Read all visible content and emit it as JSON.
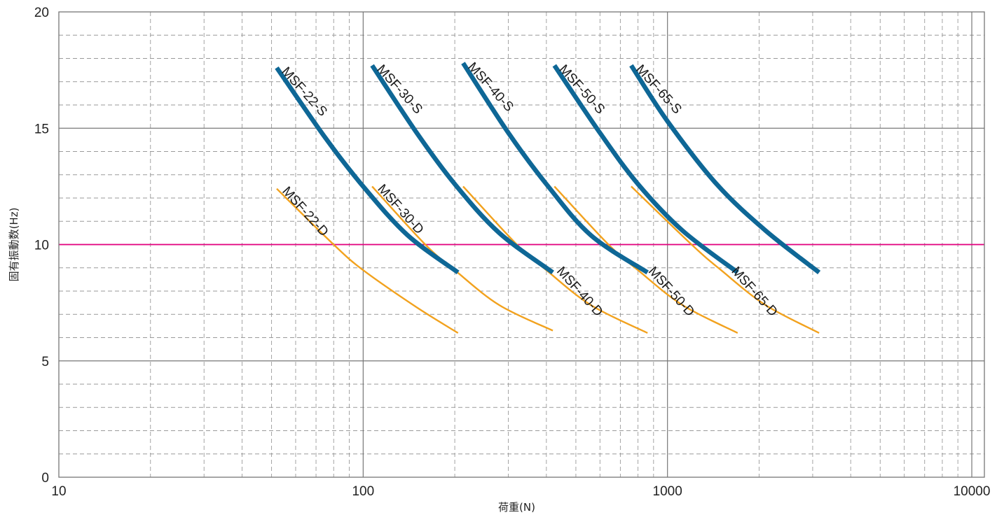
{
  "chart_data": {
    "type": "line",
    "xlabel": "荷重(N)",
    "ylabel": "固有振動数(Hz)",
    "x_scale": "log",
    "xlim": [
      10,
      11000
    ],
    "ylim": [
      0,
      20
    ],
    "x_ticks": [
      10,
      100,
      1000,
      10000
    ],
    "y_ticks": [
      0,
      5,
      10,
      15,
      20
    ],
    "grid": true,
    "reference_line": {
      "y": 10,
      "color": "#e5007f"
    },
    "colors": {
      "S": "#0e6796",
      "D": "#f2a21e",
      "frame": "#777777"
    },
    "series": [
      {
        "name": "MSF-22-S",
        "kind": "S",
        "x": [
          52,
          75,
          100,
          140,
          205
        ],
        "y": [
          17.6,
          14.6,
          12.5,
          10.4,
          8.8
        ]
      },
      {
        "name": "MSF-30-S",
        "kind": "S",
        "x": [
          107,
          150,
          200,
          280,
          420
        ],
        "y": [
          17.7,
          14.8,
          12.6,
          10.5,
          8.8
        ]
      },
      {
        "name": "MSF-40-S",
        "kind": "S",
        "x": [
          213,
          300,
          400,
          560,
          860
        ],
        "y": [
          17.8,
          14.8,
          12.6,
          10.4,
          8.8
        ]
      },
      {
        "name": "MSF-50-S",
        "kind": "S",
        "x": [
          425,
          600,
          800,
          1120,
          1700
        ],
        "y": [
          17.7,
          14.8,
          12.6,
          10.6,
          8.8
        ]
      },
      {
        "name": "MSF-65-S",
        "kind": "S",
        "x": [
          760,
          1000,
          1450,
          2100,
          3150
        ],
        "y": [
          17.7,
          15.3,
          12.6,
          10.6,
          8.8
        ]
      },
      {
        "name": "MSF-22-D",
        "kind": "D",
        "x": [
          52,
          80,
          100,
          150,
          205
        ],
        "y": [
          12.4,
          10.0,
          8.9,
          7.3,
          6.2
        ]
      },
      {
        "name": "MSF-30-D",
        "kind": "D",
        "x": [
          107,
          160,
          200,
          280,
          420
        ],
        "y": [
          12.5,
          10.0,
          8.9,
          7.4,
          6.3
        ]
      },
      {
        "name": "MSF-40-D",
        "kind": "D",
        "x": [
          213,
          320,
          400,
          560,
          860
        ],
        "y": [
          12.5,
          10.0,
          8.9,
          7.4,
          6.2
        ]
      },
      {
        "name": "MSF-50-D",
        "kind": "D",
        "x": [
          425,
          640,
          800,
          1120,
          1700
        ],
        "y": [
          12.5,
          10.0,
          8.9,
          7.4,
          6.2
        ]
      },
      {
        "name": "MSF-65-D",
        "kind": "D",
        "x": [
          760,
          1200,
          1500,
          2100,
          3150
        ],
        "y": [
          12.5,
          10.0,
          8.9,
          7.4,
          6.2
        ]
      }
    ]
  }
}
